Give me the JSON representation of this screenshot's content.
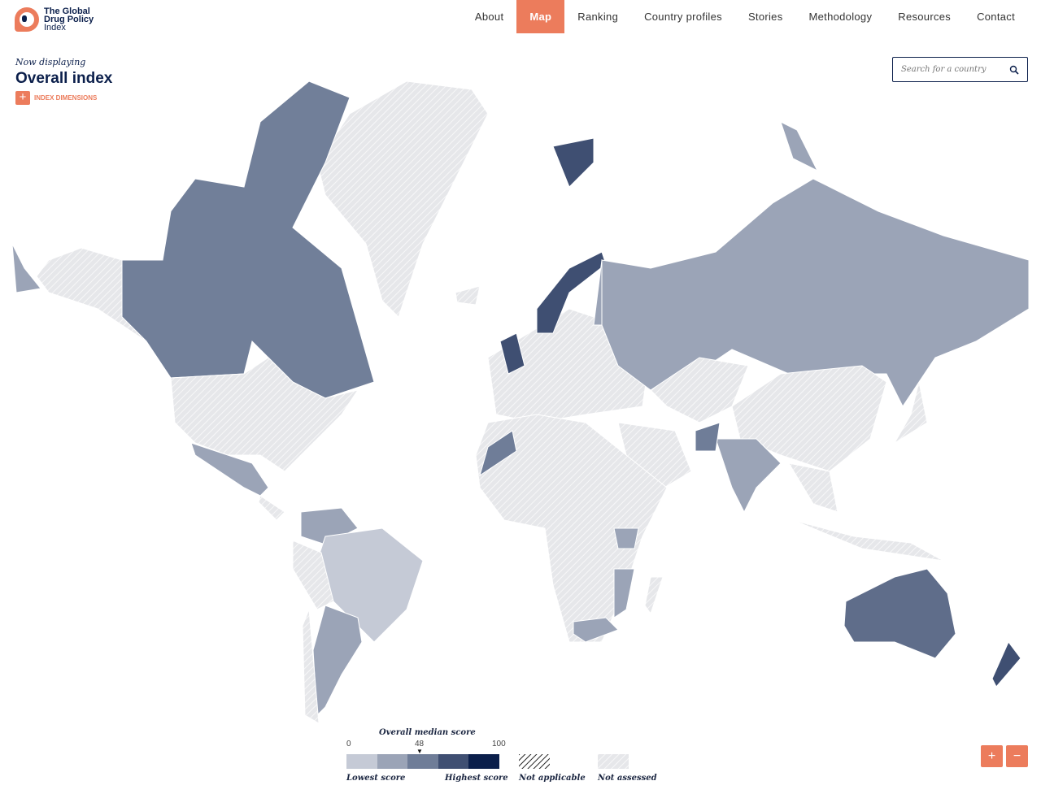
{
  "logo": {
    "line1": "The Global",
    "line2": "Drug Policy",
    "line3": "Index"
  },
  "nav": [
    {
      "label": "About"
    },
    {
      "label": "Map",
      "active": true
    },
    {
      "label": "Ranking"
    },
    {
      "label": "Country profiles"
    },
    {
      "label": "Stories"
    },
    {
      "label": "Methodology"
    },
    {
      "label": "Resources"
    },
    {
      "label": "Contact"
    }
  ],
  "display": {
    "now": "Now displaying",
    "title": "Overall index",
    "dimensions": "INDEX DIMENSIONS",
    "plus": "+"
  },
  "search": {
    "placeholder": "Search for a country",
    "icon": "search-icon"
  },
  "legend": {
    "title": "Overall median score",
    "min": "0",
    "median": "48",
    "max": "100",
    "median_value": 48,
    "low": "Lowest score",
    "high": "Highest score",
    "na": "Not applicable",
    "nas": "Not assessed",
    "scale_colors": [
      "#c5cad6",
      "#9ba4b7",
      "#6f7d98",
      "#3f4f72",
      "#0b1f4b"
    ]
  },
  "zoom": {
    "in": "+",
    "out": "−"
  },
  "colors": {
    "accent": "#ec7c5c",
    "navy": "#0b1f4b",
    "not_assessed": "#e4e5e8"
  }
}
